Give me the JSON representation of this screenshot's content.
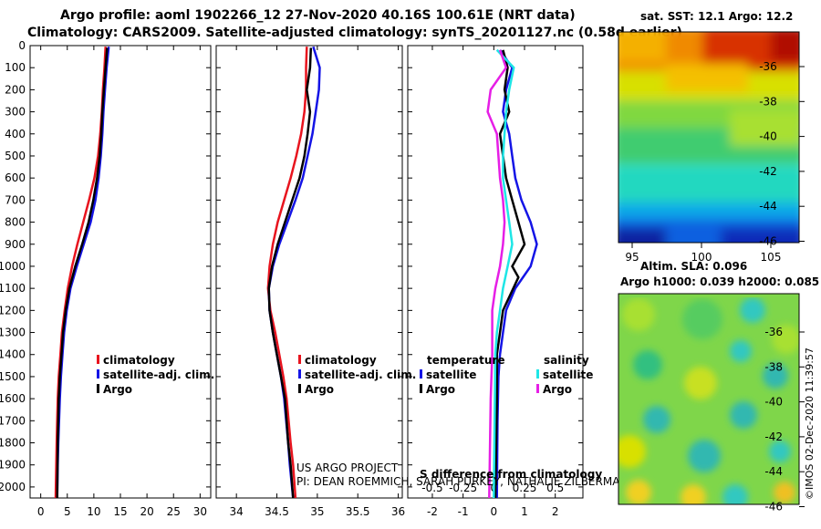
{
  "header": {
    "line1": "Argo profile: aoml 1902266_12 27-Nov-2020 40.16S 100.61E (NRT data)",
    "line2": "Climatology: CARS2009. Satellite-adjusted climatology: synTS_20201127.nc (0.58d earlier)"
  },
  "colors": {
    "red": "#e8141e",
    "blue": "#1414e6",
    "black": "#000000",
    "cyan": "#1ee6e6",
    "magenta": "#e61ee6"
  },
  "legend1": {
    "items": [
      "climatology",
      "satellite-adj. clim.",
      "Argo"
    ]
  },
  "legend2": {
    "items": [
      "climatology",
      "satellite-adj. clim.",
      "Argo"
    ]
  },
  "legend3": {
    "temperature_title": "temperature",
    "salinity_title": "salinity",
    "t_items": [
      "satellite",
      "Argo"
    ],
    "s_items": [
      "satellite",
      "Argo"
    ]
  },
  "credits": {
    "line1": "US ARGO PROJECT",
    "line2": "PI: DEAN ROEMMICH, SARAH PURKEY, NATHALIE ZILBERMAN, JOHN GILSON",
    "xlabel3": "S difference from climatology"
  },
  "maps": {
    "sst_title": "sat. SST: 12.1 Argo: 12.2",
    "sla_title1": "Altim. SLA: 0.096",
    "sla_title2": "Argo h1000: 0.039 h2000: 0.085",
    "sst_lat_ticks": [
      "-36",
      "-38",
      "-40",
      "-42",
      "-44",
      "-46"
    ],
    "sst_lon_ticks": [
      "95",
      "100",
      "105"
    ],
    "sla_lat_ticks": [
      "-36",
      "-38",
      "-40",
      "-42",
      "-44",
      "-46"
    ]
  },
  "stamp": "©IMOS 02-Dec-2020 11:39:57",
  "chart_data": [
    {
      "type": "line",
      "name": "temperature_profile",
      "xlim": [
        -2,
        32
      ],
      "ylim": [
        2050,
        0
      ],
      "xticks": [
        0,
        5,
        10,
        15,
        20,
        25,
        30
      ],
      "yticks": [
        0,
        100,
        200,
        300,
        400,
        500,
        600,
        700,
        800,
        900,
        1000,
        1100,
        1200,
        1300,
        1400,
        1500,
        1600,
        1700,
        1800,
        1900,
        2000
      ],
      "series": [
        {
          "name": "climatology",
          "color": "red",
          "points": [
            [
              12.2,
              5
            ],
            [
              12,
              100
            ],
            [
              11.7,
              200
            ],
            [
              11.5,
              300
            ],
            [
              11.2,
              400
            ],
            [
              10.8,
              500
            ],
            [
              10.1,
              600
            ],
            [
              9.1,
              700
            ],
            [
              8,
              800
            ],
            [
              6.9,
              900
            ],
            [
              5.9,
              1000
            ],
            [
              5.1,
              1100
            ],
            [
              4.5,
              1200
            ],
            [
              4,
              1300
            ],
            [
              3.7,
              1400
            ],
            [
              3.4,
              1500
            ],
            [
              3.2,
              1600
            ],
            [
              3,
              1800
            ],
            [
              2.8,
              2050
            ]
          ]
        },
        {
          "name": "satellite-adj. clim.",
          "color": "blue",
          "points": [
            [
              12.8,
              5
            ],
            [
              12.4,
              100
            ],
            [
              12.1,
              200
            ],
            [
              11.8,
              300
            ],
            [
              11.6,
              400
            ],
            [
              11.3,
              500
            ],
            [
              10.9,
              600
            ],
            [
              10.3,
              700
            ],
            [
              9.4,
              800
            ],
            [
              8.1,
              900
            ],
            [
              6.8,
              1000
            ],
            [
              5.6,
              1100
            ],
            [
              4.9,
              1200
            ],
            [
              4.4,
              1300
            ],
            [
              4.1,
              1400
            ],
            [
              3.8,
              1500
            ],
            [
              3.6,
              1600
            ],
            [
              3.3,
              1800
            ],
            [
              3.2,
              1900
            ],
            [
              3.1,
              2050
            ]
          ]
        },
        {
          "name": "Argo",
          "color": "black",
          "points": [
            [
              12.5,
              10
            ],
            [
              12.2,
              100
            ],
            [
              11.9,
              200
            ],
            [
              11.6,
              300
            ],
            [
              11.4,
              400
            ],
            [
              11.1,
              500
            ],
            [
              10.6,
              600
            ],
            [
              9.9,
              700
            ],
            [
              9,
              800
            ],
            [
              7.8,
              900
            ],
            [
              6.5,
              1000
            ],
            [
              5.4,
              1100
            ],
            [
              4.7,
              1200
            ],
            [
              4.2,
              1300
            ],
            [
              3.9,
              1400
            ],
            [
              3.6,
              1500
            ],
            [
              3.4,
              1600
            ],
            [
              3.2,
              1800
            ],
            [
              3.1,
              2050
            ]
          ]
        }
      ]
    },
    {
      "type": "line",
      "name": "salinity_profile",
      "xlim": [
        33.75,
        36.05
      ],
      "ylim": [
        2050,
        0
      ],
      "xticks": [
        34,
        34.5,
        35,
        35.5,
        36
      ],
      "series": [
        {
          "name": "climatology",
          "color": "red",
          "points": [
            [
              34.87,
              5
            ],
            [
              34.86,
              100
            ],
            [
              34.86,
              200
            ],
            [
              34.84,
              300
            ],
            [
              34.8,
              400
            ],
            [
              34.74,
              500
            ],
            [
              34.67,
              600
            ],
            [
              34.59,
              700
            ],
            [
              34.51,
              800
            ],
            [
              34.45,
              900
            ],
            [
              34.41,
              1000
            ],
            [
              34.39,
              1100
            ],
            [
              34.42,
              1200
            ],
            [
              34.48,
              1300
            ],
            [
              34.53,
              1400
            ],
            [
              34.58,
              1500
            ],
            [
              34.62,
              1600
            ],
            [
              34.67,
              1800
            ],
            [
              34.7,
              1900
            ],
            [
              34.73,
              2050
            ]
          ]
        },
        {
          "name": "satellite-adj. clim.",
          "color": "blue",
          "points": [
            [
              34.95,
              5
            ],
            [
              35.03,
              100
            ],
            [
              35.02,
              200
            ],
            [
              34.98,
              300
            ],
            [
              34.94,
              400
            ],
            [
              34.88,
              500
            ],
            [
              34.82,
              600
            ],
            [
              34.73,
              700
            ],
            [
              34.63,
              800
            ],
            [
              34.53,
              900
            ],
            [
              34.45,
              1000
            ],
            [
              34.4,
              1100
            ],
            [
              34.41,
              1200
            ],
            [
              34.45,
              1300
            ],
            [
              34.5,
              1400
            ],
            [
              34.55,
              1500
            ],
            [
              34.59,
              1600
            ],
            [
              34.64,
              1800
            ],
            [
              34.66,
              1900
            ],
            [
              34.7,
              2050
            ]
          ]
        },
        {
          "name": "Argo",
          "color": "black",
          "points": [
            [
              34.92,
              10
            ],
            [
              34.91,
              100
            ],
            [
              34.87,
              200
            ],
            [
              34.91,
              300
            ],
            [
              34.88,
              400
            ],
            [
              34.84,
              500
            ],
            [
              34.78,
              600
            ],
            [
              34.69,
              700
            ],
            [
              34.6,
              800
            ],
            [
              34.51,
              900
            ],
            [
              34.44,
              1000
            ],
            [
              34.4,
              1100
            ],
            [
              34.41,
              1200
            ],
            [
              34.45,
              1300
            ],
            [
              34.5,
              1400
            ],
            [
              34.55,
              1500
            ],
            [
              34.6,
              1600
            ],
            [
              34.64,
              1800
            ],
            [
              34.67,
              1900
            ],
            [
              34.7,
              2050
            ]
          ]
        }
      ]
    },
    {
      "type": "line",
      "name": "difference_from_climatology",
      "xlim": [
        -2.8,
        2.9
      ],
      "ylim": [
        2050,
        0
      ],
      "xlabel": "S difference from climatology",
      "top_xticks": [
        -0.5,
        -0.25,
        0,
        0.25,
        0.5
      ],
      "bottom_xticks": [
        -2,
        -1,
        0,
        1,
        2
      ],
      "series": [
        {
          "name": "temperature satellite",
          "color": "blue",
          "points": [
            [
              0.2,
              20
            ],
            [
              0.6,
              100
            ],
            [
              0.4,
              200
            ],
            [
              0.3,
              300
            ],
            [
              0.5,
              400
            ],
            [
              0.6,
              500
            ],
            [
              0.7,
              600
            ],
            [
              0.9,
              700
            ],
            [
              1.2,
              800
            ],
            [
              1.4,
              900
            ],
            [
              1.2,
              1000
            ],
            [
              0.7,
              1100
            ],
            [
              0.4,
              1200
            ],
            [
              0.3,
              1300
            ],
            [
              0.2,
              1400
            ],
            [
              0.15,
              1500
            ],
            [
              0.12,
              1700
            ],
            [
              0.1,
              2050
            ]
          ]
        },
        {
          "name": "temperature Argo",
          "color": "black",
          "points": [
            [
              0.3,
              20
            ],
            [
              0.45,
              100
            ],
            [
              0.35,
              200
            ],
            [
              0.5,
              300
            ],
            [
              0.2,
              400
            ],
            [
              0.3,
              500
            ],
            [
              0.4,
              600
            ],
            [
              0.6,
              700
            ],
            [
              0.8,
              800
            ],
            [
              1.0,
              900
            ],
            [
              0.6,
              1000
            ],
            [
              0.8,
              1050
            ],
            [
              0.3,
              1200
            ],
            [
              0.2,
              1300
            ],
            [
              0.1,
              1400
            ],
            [
              0.1,
              1600
            ],
            [
              0.05,
              2050
            ]
          ]
        },
        {
          "name": "salinity satellite",
          "color": "cyan",
          "points": [
            [
              0.1,
              20
            ],
            [
              0.65,
              100
            ],
            [
              0.5,
              200
            ],
            [
              0.4,
              300
            ],
            [
              0.35,
              400
            ],
            [
              0.3,
              500
            ],
            [
              0.3,
              600
            ],
            [
              0.4,
              700
            ],
            [
              0.5,
              800
            ],
            [
              0.6,
              900
            ],
            [
              0.45,
              1000
            ],
            [
              0.3,
              1100
            ],
            [
              0.2,
              1200
            ],
            [
              0.1,
              1300
            ],
            [
              0.05,
              1400
            ],
            [
              0.0,
              2050
            ]
          ]
        },
        {
          "name": "salinity Argo",
          "color": "magenta",
          "points": [
            [
              0.2,
              20
            ],
            [
              0.4,
              100
            ],
            [
              -0.1,
              200
            ],
            [
              -0.2,
              300
            ],
            [
              0.1,
              400
            ],
            [
              0.15,
              500
            ],
            [
              0.2,
              600
            ],
            [
              0.3,
              700
            ],
            [
              0.35,
              800
            ],
            [
              0.3,
              900
            ],
            [
              0.2,
              1000
            ],
            [
              0.05,
              1100
            ],
            [
              -0.05,
              1200
            ],
            [
              -0.05,
              1400
            ],
            [
              -0.1,
              1600
            ],
            [
              -0.15,
              2050
            ]
          ]
        }
      ]
    }
  ]
}
